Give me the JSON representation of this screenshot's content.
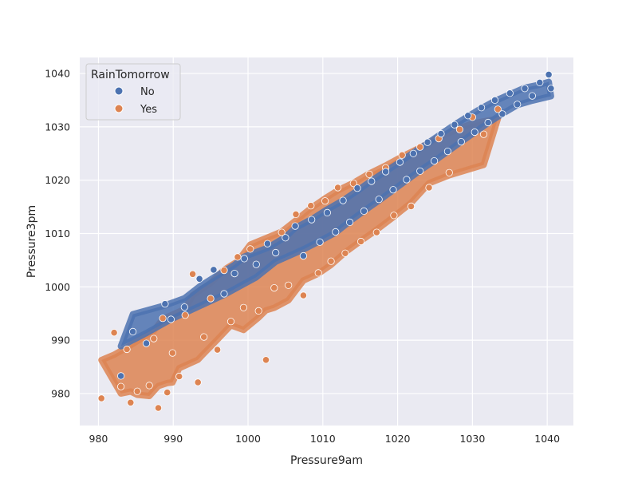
{
  "chart_data": {
    "type": "scatter",
    "title": "",
    "xlabel": "Pressure9am",
    "ylabel": "Pressure3pm",
    "xlim": [
      977.5,
      1043.5
    ],
    "ylim": [
      974,
      1043
    ],
    "xticks": [
      980,
      990,
      1000,
      1010,
      1020,
      1030,
      1040
    ],
    "yticks": [
      980,
      990,
      1000,
      1010,
      1020,
      1030,
      1040
    ],
    "grid": true,
    "legend": {
      "title": "RainTomorrow",
      "placement": "top-left",
      "entries": [
        {
          "label": "No",
          "color": "#4c72b0"
        },
        {
          "label": "Yes",
          "color": "#dd8452"
        }
      ]
    },
    "series": [
      {
        "name": "No",
        "color": "#4c72b0",
        "points": [
          [
            983.0,
            983.3
          ],
          [
            984.6,
            991.6
          ],
          [
            986.4,
            989.4
          ],
          [
            988.9,
            996.8
          ],
          [
            989.7,
            993.9
          ],
          [
            991.5,
            996.2
          ],
          [
            993.5,
            1001.5
          ],
          [
            995.4,
            1003.2
          ],
          [
            996.8,
            998.7
          ],
          [
            998.2,
            1002.5
          ],
          [
            999.5,
            1005.3
          ],
          [
            1001.1,
            1004.2
          ],
          [
            1002.6,
            1008.1
          ],
          [
            1003.7,
            1006.4
          ],
          [
            1005.0,
            1009.2
          ],
          [
            1006.3,
            1011.4
          ],
          [
            1007.4,
            1005.8
          ],
          [
            1008.5,
            1012.6
          ],
          [
            1009.6,
            1008.4
          ],
          [
            1010.6,
            1013.9
          ],
          [
            1011.7,
            1010.3
          ],
          [
            1012.7,
            1016.2
          ],
          [
            1013.6,
            1012.1
          ],
          [
            1014.6,
            1018.5
          ],
          [
            1015.5,
            1014.2
          ],
          [
            1016.5,
            1019.8
          ],
          [
            1017.5,
            1016.4
          ],
          [
            1018.4,
            1021.6
          ],
          [
            1019.4,
            1018.2
          ],
          [
            1020.3,
            1023.4
          ],
          [
            1021.2,
            1020.1
          ],
          [
            1022.1,
            1025.0
          ],
          [
            1023.0,
            1021.7
          ],
          [
            1024.0,
            1027.1
          ],
          [
            1024.9,
            1023.6
          ],
          [
            1025.8,
            1028.7
          ],
          [
            1026.7,
            1025.4
          ],
          [
            1027.6,
            1030.4
          ],
          [
            1028.5,
            1027.2
          ],
          [
            1029.4,
            1032.1
          ],
          [
            1030.3,
            1029.0
          ],
          [
            1031.2,
            1033.6
          ],
          [
            1032.1,
            1030.8
          ],
          [
            1033.0,
            1035.0
          ],
          [
            1034.0,
            1032.4
          ],
          [
            1035.0,
            1036.3
          ],
          [
            1036.0,
            1034.2
          ],
          [
            1037.0,
            1037.2
          ],
          [
            1038.0,
            1035.8
          ],
          [
            1039.0,
            1038.3
          ],
          [
            1040.2,
            1039.8
          ],
          [
            1040.5,
            1037.2
          ]
        ]
      },
      {
        "name": "Yes",
        "color": "#dd8452",
        "points": [
          [
            980.4,
            979.1
          ],
          [
            982.1,
            991.4
          ],
          [
            983.0,
            981.3
          ],
          [
            983.8,
            988.3
          ],
          [
            984.3,
            978.3
          ],
          [
            985.2,
            980.4
          ],
          [
            986.8,
            981.5
          ],
          [
            987.4,
            990.3
          ],
          [
            988.0,
            977.3
          ],
          [
            988.6,
            994.1
          ],
          [
            989.2,
            980.2
          ],
          [
            989.9,
            987.6
          ],
          [
            990.8,
            983.2
          ],
          [
            991.6,
            994.7
          ],
          [
            992.6,
            1002.4
          ],
          [
            993.3,
            982.1
          ],
          [
            994.1,
            990.6
          ],
          [
            995.0,
            997.8
          ],
          [
            995.9,
            988.2
          ],
          [
            996.8,
            1003.1
          ],
          [
            997.7,
            993.5
          ],
          [
            998.6,
            1005.6
          ],
          [
            999.4,
            996.1
          ],
          [
            1000.3,
            1007.1
          ],
          [
            1001.4,
            995.5
          ],
          [
            1002.4,
            986.3
          ],
          [
            1003.5,
            999.8
          ],
          [
            1004.5,
            1010.2
          ],
          [
            1005.4,
            1000.3
          ],
          [
            1006.4,
            1013.6
          ],
          [
            1007.4,
            998.4
          ],
          [
            1008.4,
            1015.2
          ],
          [
            1009.4,
            1002.6
          ],
          [
            1010.3,
            1016.1
          ],
          [
            1011.1,
            1004.8
          ],
          [
            1012.0,
            1018.6
          ],
          [
            1013.0,
            1006.3
          ],
          [
            1014.1,
            1019.4
          ],
          [
            1015.1,
            1008.5
          ],
          [
            1016.2,
            1021.1
          ],
          [
            1017.2,
            1010.2
          ],
          [
            1018.4,
            1022.3
          ],
          [
            1019.5,
            1013.4
          ],
          [
            1020.6,
            1024.7
          ],
          [
            1021.8,
            1015.1
          ],
          [
            1023.0,
            1026.2
          ],
          [
            1024.2,
            1018.6
          ],
          [
            1025.5,
            1027.8
          ],
          [
            1026.9,
            1021.4
          ],
          [
            1028.3,
            1029.5
          ],
          [
            1030.0,
            1031.8
          ],
          [
            1031.5,
            1028.6
          ],
          [
            1033.4,
            1033.3
          ]
        ]
      }
    ]
  }
}
